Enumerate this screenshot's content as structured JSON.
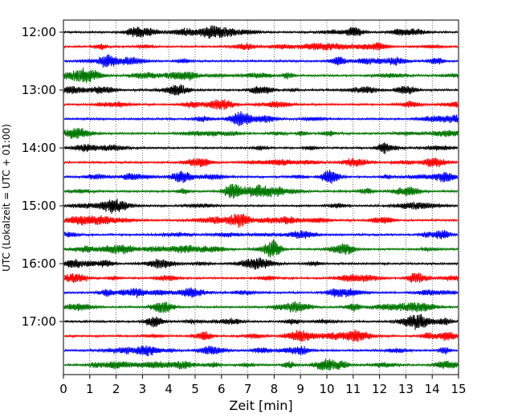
{
  "chart_data": {
    "type": "line",
    "chart_kind": "helicorder",
    "xlabel": "Zeit  [min]",
    "ylabel": "UTC (Lokalzeit = UTC + 01:00)",
    "xlim": [
      0,
      15
    ],
    "x_ticks": [
      "0",
      "1",
      "2",
      "3",
      "4",
      "5",
      "6",
      "7",
      "8",
      "9",
      "10",
      "11",
      "12",
      "13",
      "14",
      "15"
    ],
    "y_ticks": [
      "12:00",
      "13:00",
      "14:00",
      "15:00",
      "16:00",
      "17:00"
    ],
    "grid": "vertical dotted lines at each minute",
    "trace_colors": [
      "#000000",
      "#ff0000",
      "#0000ff",
      "#007700"
    ],
    "traces": [
      "12:00",
      "12:15",
      "12:30",
      "12:45",
      "13:00",
      "13:15",
      "13:30",
      "13:45",
      "14:00",
      "14:15",
      "14:30",
      "14:45",
      "15:00",
      "15:15",
      "15:30",
      "15:45",
      "16:00",
      "16:15",
      "16:30",
      "16:45",
      "17:00",
      "17:15",
      "17:30",
      "17:45"
    ]
  }
}
